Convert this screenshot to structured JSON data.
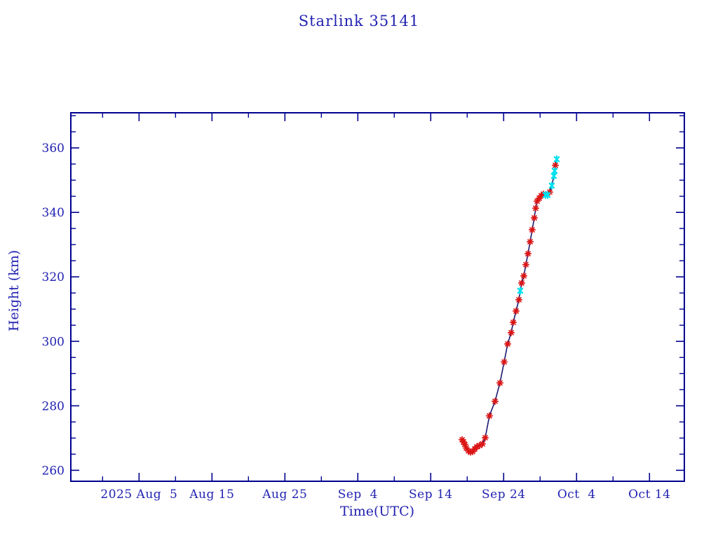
{
  "chart_data": {
    "type": "line",
    "title": "Starlink 35141",
    "xlabel": "Time(UTC)",
    "ylabel": "Height (km)",
    "x_unit": "days after 2025 Aug 5 (x-axis shows dates, UTC)",
    "xlim_days": [
      -9.36,
      74.78
    ],
    "ylim": [
      256.6,
      370.9
    ],
    "grid": false,
    "legend": "none",
    "x_major_ticks": [
      {
        "day": 0,
        "label": "2025 Aug  5"
      },
      {
        "day": 10,
        "label": "Aug 15"
      },
      {
        "day": 20,
        "label": "Aug 25"
      },
      {
        "day": 30,
        "label": "Sep  4"
      },
      {
        "day": 40,
        "label": "Sep 14"
      },
      {
        "day": 50,
        "label": "Sep 24"
      },
      {
        "day": 60,
        "label": "Oct  4"
      },
      {
        "day": 70,
        "label": "Oct 14"
      }
    ],
    "x_minor_ticks_days": [
      -5,
      5,
      15,
      25,
      35,
      45,
      55,
      65
    ],
    "y_major_ticks": [
      260,
      280,
      300,
      320,
      340,
      360
    ],
    "y_minor_step": 5,
    "colors": {
      "axis": "#000090",
      "text": "#2222b2",
      "line": "#191970",
      "marker_observed": "#dc1414",
      "marker_special": "#00e0ee"
    },
    "series_note": "Height of Starlink 35141 vs time; red asterisks = data points, cyan asterisks = highlighted points; dark navy connecting line",
    "points": [
      {
        "t": 44.3,
        "h": 269.5,
        "c": "r"
      },
      {
        "t": 44.49,
        "h": 268.8,
        "c": "r"
      },
      {
        "t": 44.68,
        "h": 268.0,
        "c": "r"
      },
      {
        "t": 44.88,
        "h": 266.9,
        "c": "r"
      },
      {
        "t": 45.16,
        "h": 266.0,
        "c": "r"
      },
      {
        "t": 45.45,
        "h": 265.6,
        "c": "r"
      },
      {
        "t": 45.74,
        "h": 265.8,
        "c": "r"
      },
      {
        "t": 46.03,
        "h": 266.6,
        "c": "r"
      },
      {
        "t": 46.32,
        "h": 267.3,
        "c": "r"
      },
      {
        "t": 46.7,
        "h": 267.7,
        "c": "r"
      },
      {
        "t": 47.09,
        "h": 268.2,
        "c": "r"
      },
      {
        "t": 47.47,
        "h": 270.1,
        "c": "r"
      },
      {
        "t": 48.05,
        "h": 276.9,
        "c": "r"
      },
      {
        "t": 48.82,
        "h": 281.4,
        "c": "r"
      },
      {
        "t": 49.49,
        "h": 287.1,
        "c": "r"
      },
      {
        "t": 50.07,
        "h": 293.6,
        "c": "r"
      },
      {
        "t": 50.55,
        "h": 299.2,
        "c": "r"
      },
      {
        "t": 51.03,
        "h": 302.7,
        "c": "r"
      },
      {
        "t": 51.32,
        "h": 305.9,
        "c": "r"
      },
      {
        "t": 51.7,
        "h": 309.4,
        "c": "r"
      },
      {
        "t": 52.09,
        "h": 312.9,
        "c": "r"
      },
      {
        "t": 52.28,
        "h": 315.7,
        "c": "c"
      },
      {
        "t": 52.47,
        "h": 318.1,
        "c": "r"
      },
      {
        "t": 52.76,
        "h": 320.3,
        "c": "r"
      },
      {
        "t": 53.05,
        "h": 323.8,
        "c": "r"
      },
      {
        "t": 53.34,
        "h": 327.2,
        "c": "r"
      },
      {
        "t": 53.63,
        "h": 330.9,
        "c": "r"
      },
      {
        "t": 53.91,
        "h": 334.6,
        "c": "r"
      },
      {
        "t": 54.2,
        "h": 338.3,
        "c": "r"
      },
      {
        "t": 54.39,
        "h": 341.3,
        "c": "r"
      },
      {
        "t": 54.59,
        "h": 343.5,
        "c": "r"
      },
      {
        "t": 54.88,
        "h": 344.4,
        "c": "r"
      },
      {
        "t": 55.16,
        "h": 345.2,
        "c": "r"
      },
      {
        "t": 55.45,
        "h": 345.7,
        "c": "r"
      },
      {
        "t": 55.74,
        "h": 345.4,
        "c": "c"
      },
      {
        "t": 56.03,
        "h": 345.4,
        "c": "c"
      },
      {
        "t": 56.32,
        "h": 346.3,
        "c": "r"
      },
      {
        "t": 56.6,
        "h": 348.3,
        "c": "c"
      },
      {
        "t": 56.89,
        "h": 351.3,
        "c": "c"
      },
      {
        "t": 56.99,
        "h": 352.9,
        "c": "c"
      },
      {
        "t": 57.09,
        "h": 354.6,
        "c": "r"
      },
      {
        "t": 57.28,
        "h": 356.5,
        "c": "c"
      }
    ]
  }
}
